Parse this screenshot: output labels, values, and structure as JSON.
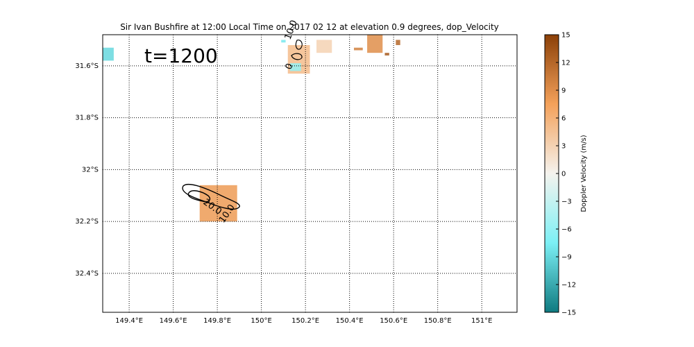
{
  "chart_data": {
    "type": "heatmap",
    "title": "Sir Ivan Bushfire at 12:00 Local Time on 2017 02 12 at elevation 0.9 degrees, dop_Velocity",
    "annotation": "t=1200",
    "x_ticks": [
      "149.4°E",
      "149.6°E",
      "149.8°E",
      "150°E",
      "150.2°E",
      "150.4°E",
      "150.6°E",
      "150.8°E",
      "151°E"
    ],
    "x_tick_values": [
      149.4,
      149.6,
      149.8,
      150.0,
      150.2,
      150.4,
      150.6,
      150.8,
      151.0
    ],
    "y_ticks": [
      "31.6°S",
      "31.8°S",
      "32°S",
      "32.2°S",
      "32.4°S"
    ],
    "y_tick_values": [
      -31.6,
      -31.8,
      -32.0,
      -32.2,
      -32.4
    ],
    "xlim": [
      149.28,
      151.16
    ],
    "ylim": [
      -32.55,
      -31.48
    ],
    "grid": true,
    "colorbar": {
      "label": "Doppler Velocity (m/s)",
      "ticks": [
        "15",
        "12",
        "9",
        "6",
        "3",
        "0",
        "−3",
        "−6",
        "−9",
        "−12",
        "−15"
      ],
      "tick_values": [
        15,
        12,
        9,
        6,
        3,
        0,
        -3,
        -6,
        -9,
        -12,
        -15
      ],
      "range": [
        -15,
        15
      ],
      "colors": {
        "low": "#0f7a80",
        "mid_low": "#7cf0f5",
        "zero": "#f5f3ee",
        "mid_high": "#f4a15a",
        "high": "#8b4008"
      }
    },
    "contour_labels": [
      "10.0",
      "20.0",
      "10.0",
      "0",
      "10.0"
    ],
    "velocity_patches": [
      {
        "lon": 149.72,
        "lat": -32.06,
        "lon2": 149.89,
        "lat2": -32.2,
        "value": 8
      },
      {
        "lon": 150.12,
        "lat": -31.52,
        "lon2": 150.22,
        "lat2": -31.63,
        "value": 5
      },
      {
        "lon": 150.25,
        "lat": -31.5,
        "lon2": 150.32,
        "lat2": -31.55,
        "value": 3
      },
      {
        "lon": 150.48,
        "lat": -31.48,
        "lon2": 150.55,
        "lat2": -31.55,
        "value": 9
      },
      {
        "lon": 150.42,
        "lat": -31.53,
        "lon2": 150.46,
        "lat2": -31.54,
        "value": 10
      },
      {
        "lon": 150.56,
        "lat": -31.55,
        "lon2": 150.58,
        "lat2": -31.56,
        "value": 13
      },
      {
        "lon": 150.61,
        "lat": -31.5,
        "lon2": 150.63,
        "lat2": -31.52,
        "value": 12
      },
      {
        "lon": 149.28,
        "lat": -31.53,
        "lon2": 149.33,
        "lat2": -31.58,
        "value": -9
      },
      {
        "lon": 150.13,
        "lat": -31.59,
        "lon2": 150.18,
        "lat2": -31.62,
        "value": -6
      },
      {
        "lon": 150.09,
        "lat": -31.5,
        "lon2": 150.11,
        "lat2": -31.51,
        "value": -8
      }
    ]
  }
}
